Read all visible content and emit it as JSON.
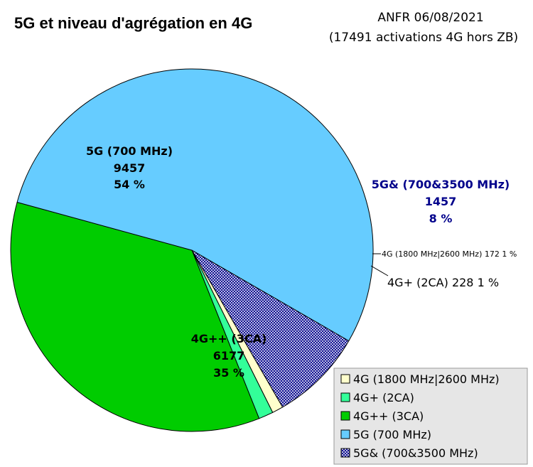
{
  "header": {
    "title": "5G et niveau d'agrégation en 4G",
    "source": "ANFR 06/08/2021",
    "note": "(17491 activations 4G hors ZB)"
  },
  "chart_data": {
    "type": "pie",
    "title": "5G et niveau d'agrégation en 4G",
    "total": 17491,
    "slices": [
      {
        "name": "5G& (700&3500 MHz)",
        "value": 1457,
        "percent_label": "8 %",
        "color": "#00008b",
        "fill": "hatch"
      },
      {
        "name": "4G (1800 MHz|2600 MHz)",
        "value": 172,
        "percent_label": "1 %",
        "color": "#ffffcc"
      },
      {
        "name": "4G+ (2CA)",
        "value": 228,
        "percent_label": "1 %",
        "color": "#33ff99"
      },
      {
        "name": "4G++ (3CA)",
        "value": 6177,
        "percent_label": "35 %",
        "color": "#00cc00"
      },
      {
        "name": "5G (700 MHz)",
        "value": 9457,
        "percent_label": "54 %",
        "color": "#66ccff"
      }
    ],
    "labels": {
      "s5g": {
        "name": "5G (700 MHz)",
        "value": "9457",
        "pct": "54 %"
      },
      "s4gpp": {
        "name": "4G++ (3CA)",
        "value": "6177",
        "pct": "35 %"
      },
      "s5gand": {
        "name": "5G& (700&3500 MHz)",
        "value": "1457",
        "pct": "8 %"
      },
      "s4g": "4G (1800 MHz|2600 MHz) 172 1 %",
      "s4gp": "4G+ (2CA) 228 1 %"
    },
    "legend": {
      "placement": "bottom-right",
      "items": [
        {
          "label": "4G (1800 MHz|2600 MHz)",
          "color": "#ffffcc",
          "fill": "solid"
        },
        {
          "label": "4G+ (2CA)",
          "color": "#33ff99",
          "fill": "solid"
        },
        {
          "label": "4G++ (3CA)",
          "color": "#00cc00",
          "fill": "solid"
        },
        {
          "label": "5G (700 MHz)",
          "color": "#66ccff",
          "fill": "solid"
        },
        {
          "label": "5G& (700&3500 MHz)",
          "color": "#00008b",
          "fill": "hatch"
        }
      ]
    }
  }
}
